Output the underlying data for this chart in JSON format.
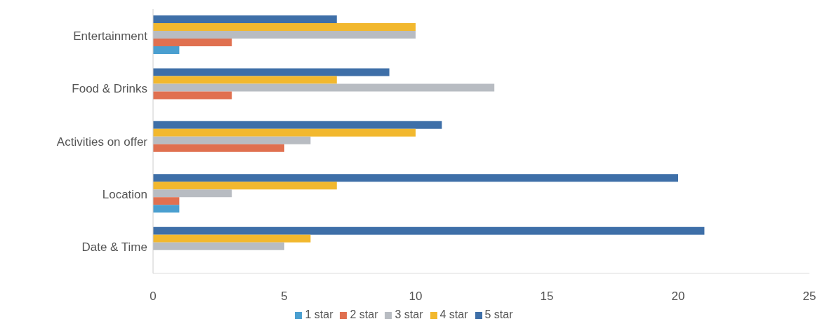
{
  "chart_data": {
    "type": "bar",
    "orientation": "horizontal",
    "categories": [
      "Entertainment",
      "Food & Drinks",
      "Activities on offer",
      "Location",
      "Date & Time"
    ],
    "series": [
      {
        "name": "5 star",
        "color": "#3e6fa8",
        "values": [
          7,
          9,
          11,
          20,
          21
        ]
      },
      {
        "name": "4 star",
        "color": "#f2b82e",
        "values": [
          10,
          7,
          10,
          7,
          6
        ]
      },
      {
        "name": "3 star",
        "color": "#b8bcc2",
        "values": [
          10,
          13,
          6,
          3,
          5
        ]
      },
      {
        "name": "2 star",
        "color": "#e07050",
        "values": [
          3,
          3,
          5,
          1,
          0
        ]
      },
      {
        "name": "1 star",
        "color": "#4a9fd0",
        "values": [
          1,
          0,
          0,
          1,
          0
        ]
      }
    ],
    "xlim": [
      0,
      25
    ],
    "xticks": [
      0,
      5,
      10,
      15,
      20,
      25
    ],
    "grid": false,
    "legend": "bottom"
  }
}
